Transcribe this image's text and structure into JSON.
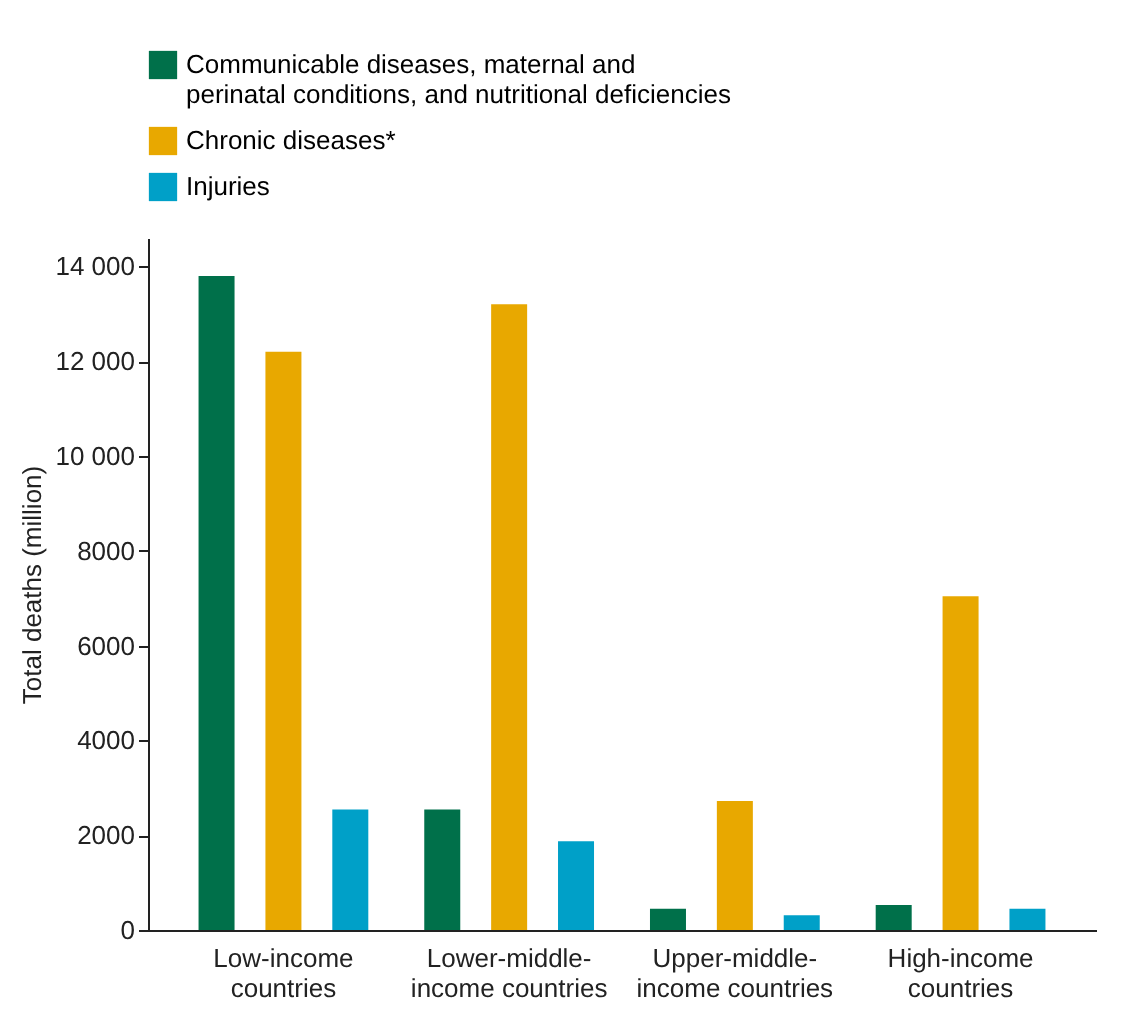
{
  "chart_data": {
    "type": "bar",
    "ylabel": "Total deaths (million)",
    "categories": [
      "Low-income\ncountries",
      "Lower-middle-\nincome countries",
      "Upper-middle-\nincome countries",
      "High-income\ncountries"
    ],
    "series": [
      {
        "name": "Communicable diseases, maternal and\nperinatal conditions, and nutritional deficiencies",
        "color": "#00704a",
        "values": [
          13800,
          2540,
          450,
          530
        ]
      },
      {
        "name": "Chronic diseases*",
        "color": "#e8a800",
        "values": [
          12200,
          13200,
          2720,
          7040
        ]
      },
      {
        "name": "Injuries",
        "color": "#00a0c8",
        "values": [
          2540,
          1870,
          310,
          450
        ]
      }
    ],
    "ylim": [
      0,
      14600
    ],
    "yticks": [
      0,
      2000,
      4000,
      6000,
      8000,
      {
        "value": 10000,
        "label": "10 000"
      },
      {
        "value": 12000,
        "label": "12 000"
      },
      {
        "value": 14000,
        "label": "14 000"
      }
    ],
    "grid": false,
    "legend": "top"
  }
}
